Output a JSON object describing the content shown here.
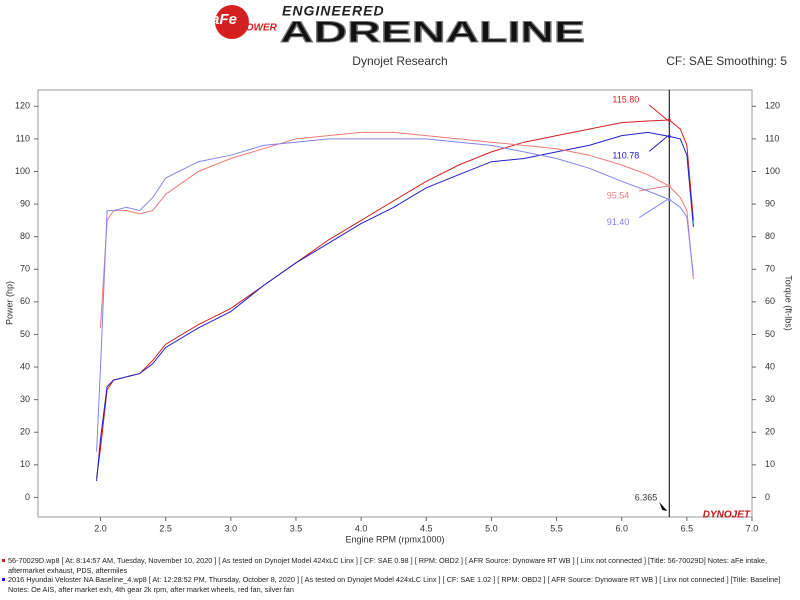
{
  "chart_data": {
    "type": "line",
    "brand": {
      "logo": "aFe",
      "logo_sub": "POWER",
      "tagline": "ENGINEERED",
      "name": "ADRENALINE",
      "footer_logo": "DYNOJET"
    },
    "title": "Dynojet Research",
    "subtitle": "CF: SAE Smoothing: 5",
    "xlabel": "Engine RPM (rpmx1000)",
    "ylabel": "Power (hp)",
    "y2label": "Torque (ft-lbs)",
    "x": [
      1.97,
      2.0,
      2.05,
      2.1,
      2.2,
      2.3,
      2.4,
      2.5,
      2.75,
      3.0,
      3.25,
      3.5,
      3.75,
      4.0,
      4.25,
      4.5,
      4.75,
      5.0,
      5.25,
      5.5,
      5.75,
      6.0,
      6.2,
      6.365,
      6.45,
      6.5,
      6.55
    ],
    "series": [
      {
        "color": "#d42020",
        "values": [
          6,
          15,
          33,
          36,
          37,
          38,
          42,
          47,
          53,
          58,
          65,
          72,
          79,
          85,
          91,
          97,
          102,
          106,
          109,
          111,
          113,
          115,
          115.5,
          115.8,
          113,
          108,
          85
        ],
        "value_labels": [
          null,
          null,
          null,
          null,
          null,
          null,
          null,
          null,
          null,
          null,
          null,
          null,
          null,
          null,
          null,
          null,
          null,
          null,
          null,
          null,
          null,
          null,
          null,
          "115.80",
          null,
          null,
          null
        ]
      },
      {
        "color": "#2020c8",
        "values": [
          5,
          18,
          34,
          36,
          37,
          38,
          41,
          46,
          52,
          57,
          65,
          72,
          78,
          84,
          89,
          95,
          99,
          103,
          104,
          106,
          108,
          111,
          112,
          110.78,
          110,
          105,
          83
        ],
        "value_labels": [
          null,
          null,
          null,
          null,
          null,
          null,
          null,
          null,
          null,
          null,
          null,
          null,
          null,
          null,
          null,
          null,
          null,
          null,
          null,
          null,
          null,
          null,
          null,
          "110.78",
          null,
          null,
          null
        ]
      },
      {
        "color": "#f07a7a",
        "axis": "y2",
        "values": [
          null,
          52,
          85,
          88,
          88,
          87,
          88,
          93,
          100,
          104,
          107,
          110,
          111,
          112,
          112,
          111,
          110,
          109,
          108,
          107,
          105,
          102,
          99,
          95.54,
          92,
          88,
          67
        ],
        "value_labels": [
          null,
          null,
          null,
          null,
          null,
          null,
          null,
          null,
          null,
          null,
          null,
          null,
          null,
          null,
          null,
          null,
          null,
          null,
          null,
          null,
          null,
          null,
          null,
          "95.54",
          null,
          null,
          null
        ]
      },
      {
        "color": "#8484ee",
        "axis": "y2",
        "values": [
          14,
          40,
          88,
          88,
          89,
          88,
          92,
          98,
          103,
          105,
          108,
          109,
          110,
          110,
          110,
          110,
          109,
          108,
          106,
          104,
          101,
          97,
          94,
          91.4,
          89,
          86,
          68
        ],
        "value_labels": [
          null,
          null,
          null,
          null,
          null,
          null,
          null,
          null,
          null,
          null,
          null,
          null,
          null,
          null,
          null,
          null,
          null,
          null,
          null,
          null,
          null,
          null,
          null,
          "91.40",
          null,
          null,
          null
        ]
      }
    ],
    "cursor_x": 6.365,
    "xlim": [
      1.52,
      7.0
    ],
    "xticks": [
      {
        "value": 2,
        "label": "2.0"
      },
      {
        "value": 2.5,
        "label": "2.5"
      },
      {
        "value": 3,
        "label": "3.0"
      },
      {
        "value": 3.5,
        "label": "3.5"
      },
      {
        "value": 4,
        "label": "4.0"
      },
      {
        "value": 4.5,
        "label": "4.5"
      },
      {
        "value": 5,
        "label": "5.0"
      },
      {
        "value": 5.5,
        "label": "5.5"
      },
      {
        "value": 6,
        "label": "6.0"
      },
      {
        "value": 6.5,
        "label": "6.5"
      },
      {
        "value": 7,
        "label": "7.0"
      }
    ],
    "ylim": [
      -6,
      125
    ],
    "yticks": [
      0,
      10,
      20,
      30,
      40,
      50,
      60,
      70,
      80,
      90,
      100,
      110,
      120
    ],
    "y2lim": [
      -6,
      125
    ],
    "y2ticks": [
      0,
      10,
      20,
      30,
      40,
      50,
      60,
      70,
      80,
      90,
      100,
      110,
      120
    ],
    "grid": false,
    "runs": [
      {
        "color": "#d42020",
        "text": "56-70029D.wp8 [ At: 8:14:57 AM, Tuesday, November 10, 2020 ] [ As tested on Dynojet Model 424xLC Linx ] [ CF: SAE 0.98 ] [ RPM: OBD2 ] [ AFR Source: Dynoware RT WB ] [ Linx not connected ] [Title: 56-70029D] Notes: aFe intake, aftermarket exhaust, PDS, aftermiles"
      },
      {
        "color": "#2020c8",
        "text": "2016 Hyundai Veloster NA Baseline_4.wp8 [ At: 12:28:52 PM, Thursday, October 8, 2020 ] [ As tested on Dynojet Model 424xLC Linx ] [ CF: SAE 1.02 ] [ RPM: OBD2 ] [ AFR Source: Dynoware RT WB ] [ Linx not connected ] [Title: Baseline] Notes: Oe AIS, after market exh, 4th gear 2k rpm, after market wheels, red fan, silver fan"
      }
    ]
  }
}
